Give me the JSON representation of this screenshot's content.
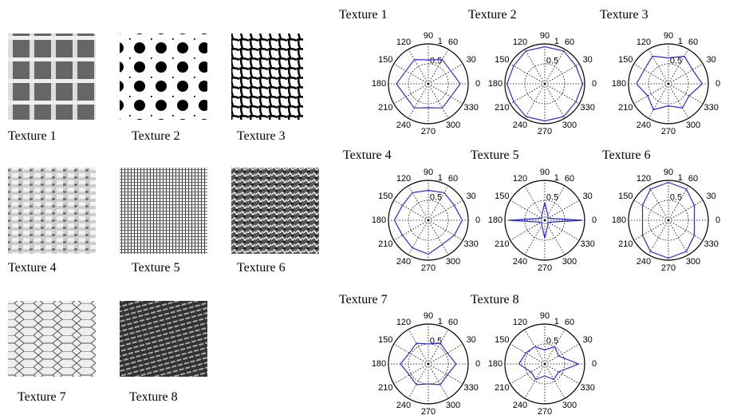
{
  "textures": [
    "Texture 1",
    "Texture 2",
    "Texture 3",
    "Texture 4",
    "Texture 5",
    "Texture 6",
    "Texture 7",
    "Texture 8"
  ],
  "polar": {
    "theta": [
      0,
      30,
      60,
      90,
      120,
      150,
      180,
      210,
      240,
      270,
      300,
      330
    ],
    "rlim": [
      0,
      1
    ],
    "rticks": [
      0.5,
      1
    ],
    "curve_color": "#2a2ad8",
    "plots": [
      {
        "title": "Texture 1",
        "r": [
          0.8,
          0.65,
          0.7,
          0.6,
          0.7,
          0.65,
          0.8,
          0.65,
          0.7,
          0.6,
          0.7,
          0.65
        ]
      },
      {
        "title": "Texture 2",
        "r": [
          0.95,
          0.9,
          0.95,
          0.93,
          0.95,
          0.9,
          0.95,
          0.9,
          0.95,
          0.93,
          0.95,
          0.9
        ]
      },
      {
        "title": "Texture 3",
        "r": [
          0.85,
          0.7,
          0.8,
          0.65,
          0.8,
          0.7,
          0.8,
          0.6,
          0.75,
          0.55,
          0.7,
          0.6
        ]
      },
      {
        "title": "Texture 4",
        "r": [
          0.85,
          0.75,
          0.8,
          0.75,
          0.8,
          0.75,
          0.85,
          0.75,
          0.8,
          0.85,
          0.7,
          0.75
        ]
      },
      {
        "title": "Texture 5",
        "r": [
          0.95,
          0.1,
          0.15,
          0.45,
          0.15,
          0.1,
          0.9,
          0.1,
          0.15,
          0.45,
          0.15,
          0.1
        ]
      },
      {
        "title": "Texture 6",
        "r": [
          0.65,
          0.75,
          0.9,
          0.95,
          0.9,
          0.75,
          0.65,
          0.75,
          0.9,
          0.95,
          0.9,
          0.75
        ]
      },
      {
        "title": "Texture 7",
        "r": [
          0.7,
          0.55,
          0.6,
          0.5,
          0.6,
          0.55,
          0.7,
          0.55,
          0.6,
          0.5,
          0.6,
          0.55
        ]
      },
      {
        "title": "Texture 8",
        "r": [
          0.85,
          0.4,
          0.5,
          0.35,
          0.5,
          0.55,
          0.65,
          0.4,
          0.45,
          0.3,
          0.45,
          0.4
        ]
      }
    ]
  }
}
